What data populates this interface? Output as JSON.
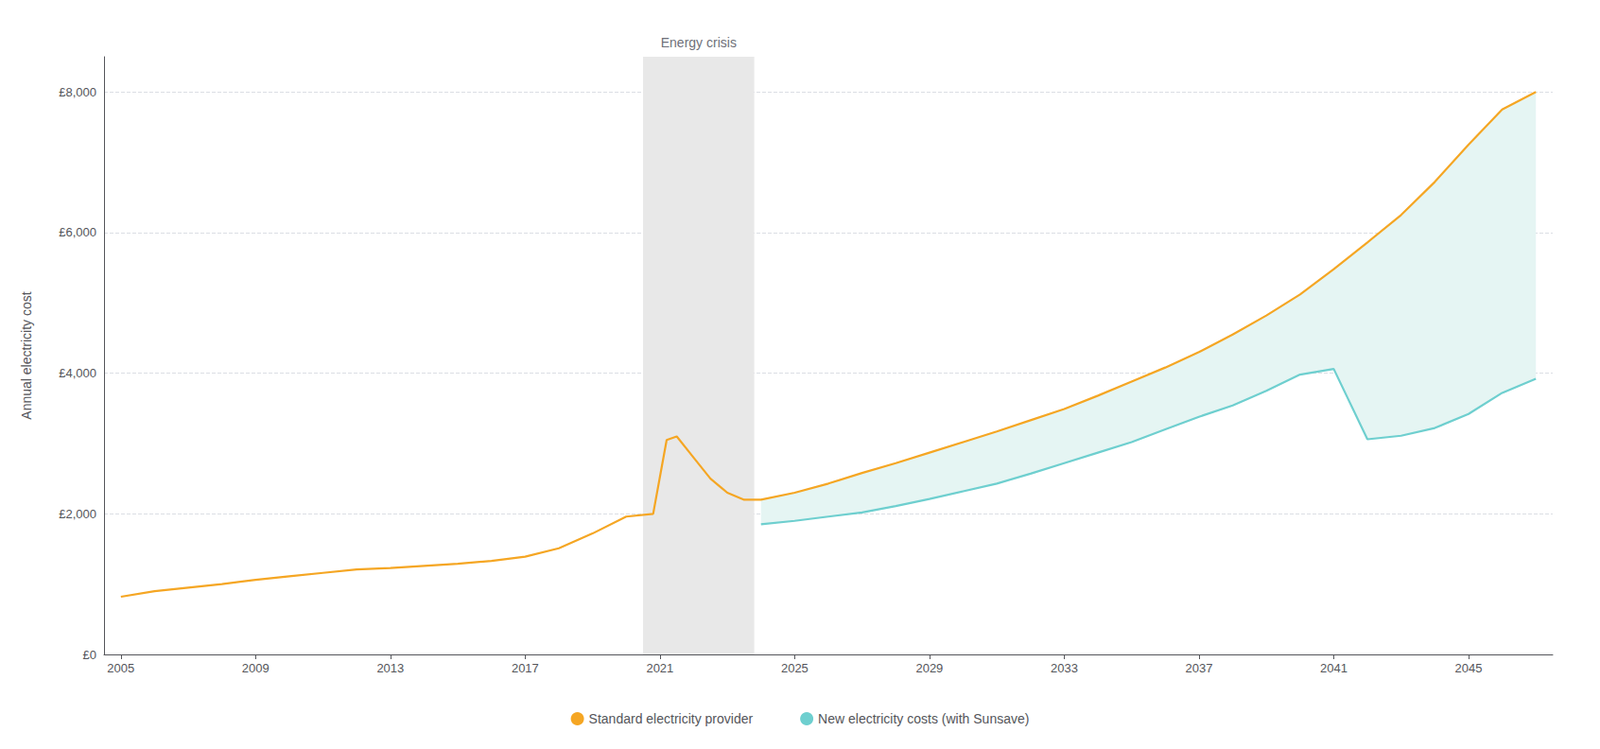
{
  "chart_data": {
    "type": "line",
    "ylabel": "Annual electricity cost",
    "xlim": [
      2004.5,
      2047.5
    ],
    "ylim": [
      0,
      8500
    ],
    "xticks": [
      2005,
      2009,
      2013,
      2017,
      2021,
      2025,
      2029,
      2033,
      2037,
      2041,
      2045
    ],
    "yticks": [
      {
        "value": 0,
        "label": "£0"
      },
      {
        "value": 2000,
        "label": "£2,000"
      },
      {
        "value": 4000,
        "label": "£4,000"
      },
      {
        "value": 6000,
        "label": "£6,000"
      },
      {
        "value": 8000,
        "label": "£8,000"
      }
    ],
    "grid": true,
    "legend": "bottom",
    "annotations": [
      {
        "text": "Energy crisis",
        "x_range": [
          2020.5,
          2023.8
        ],
        "color": "#e8e8e8"
      }
    ],
    "areas": [
      {
        "between": [
          "Standard electricity provider",
          "New electricity costs (with Sunsave)"
        ],
        "color": "#E5F5F3"
      }
    ],
    "series": [
      {
        "name": "Standard electricity provider",
        "color": "#F5A623",
        "x": [
          2005,
          2006,
          2007,
          2008,
          2009,
          2010,
          2011,
          2012,
          2013,
          2014,
          2015,
          2016,
          2017,
          2018,
          2019,
          2020,
          2020.8,
          2021.2,
          2021.5,
          2022.0,
          2022.5,
          2023.0,
          2023.5,
          2024.0,
          2025,
          2026,
          2027,
          2028,
          2029,
          2030,
          2031,
          2032,
          2033,
          2034,
          2035,
          2036,
          2037,
          2038,
          2039,
          2040,
          2041,
          2042,
          2043,
          2044,
          2045,
          2046,
          2047
        ],
        "values": [
          820,
          900,
          950,
          1000,
          1060,
          1110,
          1160,
          1210,
          1230,
          1260,
          1290,
          1330,
          1390,
          1510,
          1720,
          1960,
          2000,
          3050,
          3100,
          2800,
          2500,
          2300,
          2200,
          2200,
          2300,
          2430,
          2580,
          2720,
          2870,
          3020,
          3170,
          3330,
          3490,
          3680,
          3880,
          4080,
          4300,
          4550,
          4820,
          5120,
          5480,
          5860,
          6250,
          6720,
          7250,
          7750,
          8000
        ]
      },
      {
        "name": "New electricity costs (with Sunsave)",
        "color": "#6ECFCF",
        "x": [
          2024.0,
          2025,
          2026,
          2027,
          2028,
          2029,
          2030,
          2031,
          2032,
          2033,
          2034,
          2035,
          2036,
          2037,
          2038,
          2039,
          2040,
          2041,
          2042,
          2043,
          2044,
          2045,
          2046,
          2047
        ],
        "values": [
          1850,
          1900,
          1960,
          2020,
          2110,
          2210,
          2320,
          2430,
          2570,
          2720,
          2870,
          3020,
          3200,
          3380,
          3540,
          3750,
          3980,
          4060,
          3060,
          3110,
          3220,
          3420,
          3720,
          3920
        ]
      }
    ]
  }
}
